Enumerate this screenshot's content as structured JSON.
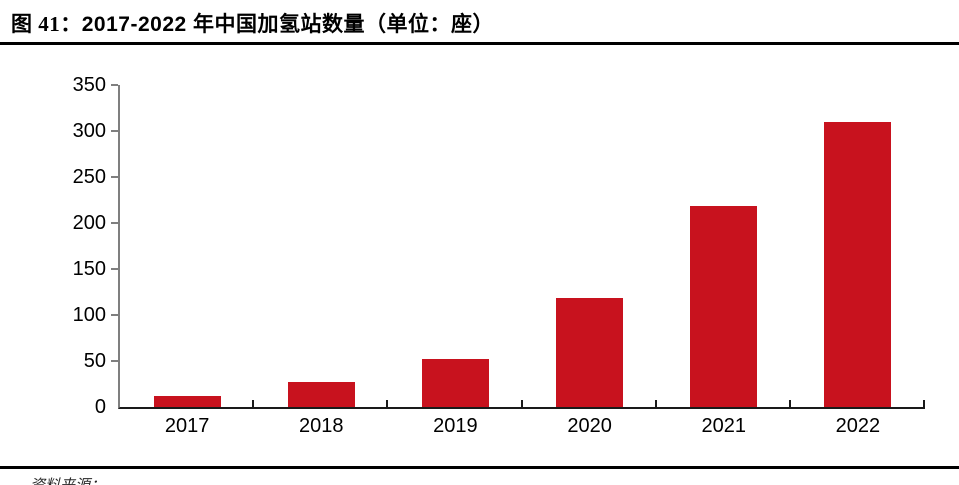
{
  "figure": {
    "title_prefix": "图 41：",
    "title_main": "2017-2022 年中国加氢站数量（单位：座）",
    "source_note": "资料来源："
  },
  "chart_data": {
    "type": "bar",
    "title": "2017-2022 年中国加氢站数量（单位：座）",
    "unit": "座",
    "categories": [
      "2017",
      "2018",
      "2019",
      "2020",
      "2021",
      "2022"
    ],
    "values": [
      12,
      27,
      52,
      118,
      218,
      310
    ],
    "ylim": [
      0,
      350
    ],
    "yticks": [
      0,
      50,
      100,
      150,
      200,
      250,
      300,
      350
    ],
    "xlabel": "",
    "ylabel": "",
    "grid": false,
    "legend": false,
    "bar_color": "#C8121E",
    "axis_color": "#7f7f7f",
    "baseline_color": "#1a1a1a"
  }
}
